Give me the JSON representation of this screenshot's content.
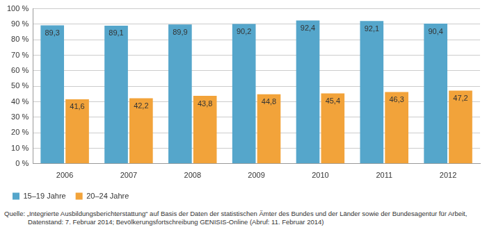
{
  "chart_data": {
    "type": "bar",
    "categories": [
      "2006",
      "2007",
      "2008",
      "2009",
      "2010",
      "2011",
      "2012"
    ],
    "series": [
      {
        "name": "15–19 Jahre",
        "color": "#55a6cb",
        "values": [
          89.3,
          89.1,
          89.9,
          90.2,
          92.4,
          92.1,
          90.4
        ],
        "value_labels": [
          "89,3",
          "89,1",
          "89,9",
          "90,2",
          "92,4",
          "92,1",
          "90,4"
        ]
      },
      {
        "name": "20–24 Jahre",
        "color": "#f2a33a",
        "values": [
          41.6,
          42.2,
          43.8,
          44.8,
          45.4,
          46.3,
          47.2
        ],
        "value_labels": [
          "41,6",
          "42,2",
          "43,8",
          "44,8",
          "45,4",
          "46,3",
          "47,2"
        ]
      }
    ],
    "ylim": [
      0,
      100
    ],
    "yticks": [
      {
        "value": 0,
        "label": "0 %"
      },
      {
        "value": 10,
        "label": "10 %"
      },
      {
        "value": 20,
        "label": "20 %"
      },
      {
        "value": 30,
        "label": "30 %"
      },
      {
        "value": 40,
        "label": "40 %"
      },
      {
        "value": 50,
        "label": "50 %"
      },
      {
        "value": 60,
        "label": "60 %"
      },
      {
        "value": 70,
        "label": "70 %"
      },
      {
        "value": 80,
        "label": "80 %"
      },
      {
        "value": 90,
        "label": "90 %"
      },
      {
        "value": 100,
        "label": "100 %"
      }
    ],
    "grid": true,
    "legend": "bottom-left",
    "data_labels": true,
    "annotations": [
      "Quelle: „Integrierte Ausbildungsberichterstattung“ auf Basis der Daten der statistischen Ämter des Bundes und der Länder sowie der Bundesagentur für Arbeit,",
      "Datenstand: 7. Februar 2014; Bevölkerungsfortschreibung GENISIS-Online (Abruf: 11. Februar 2014)"
    ]
  }
}
